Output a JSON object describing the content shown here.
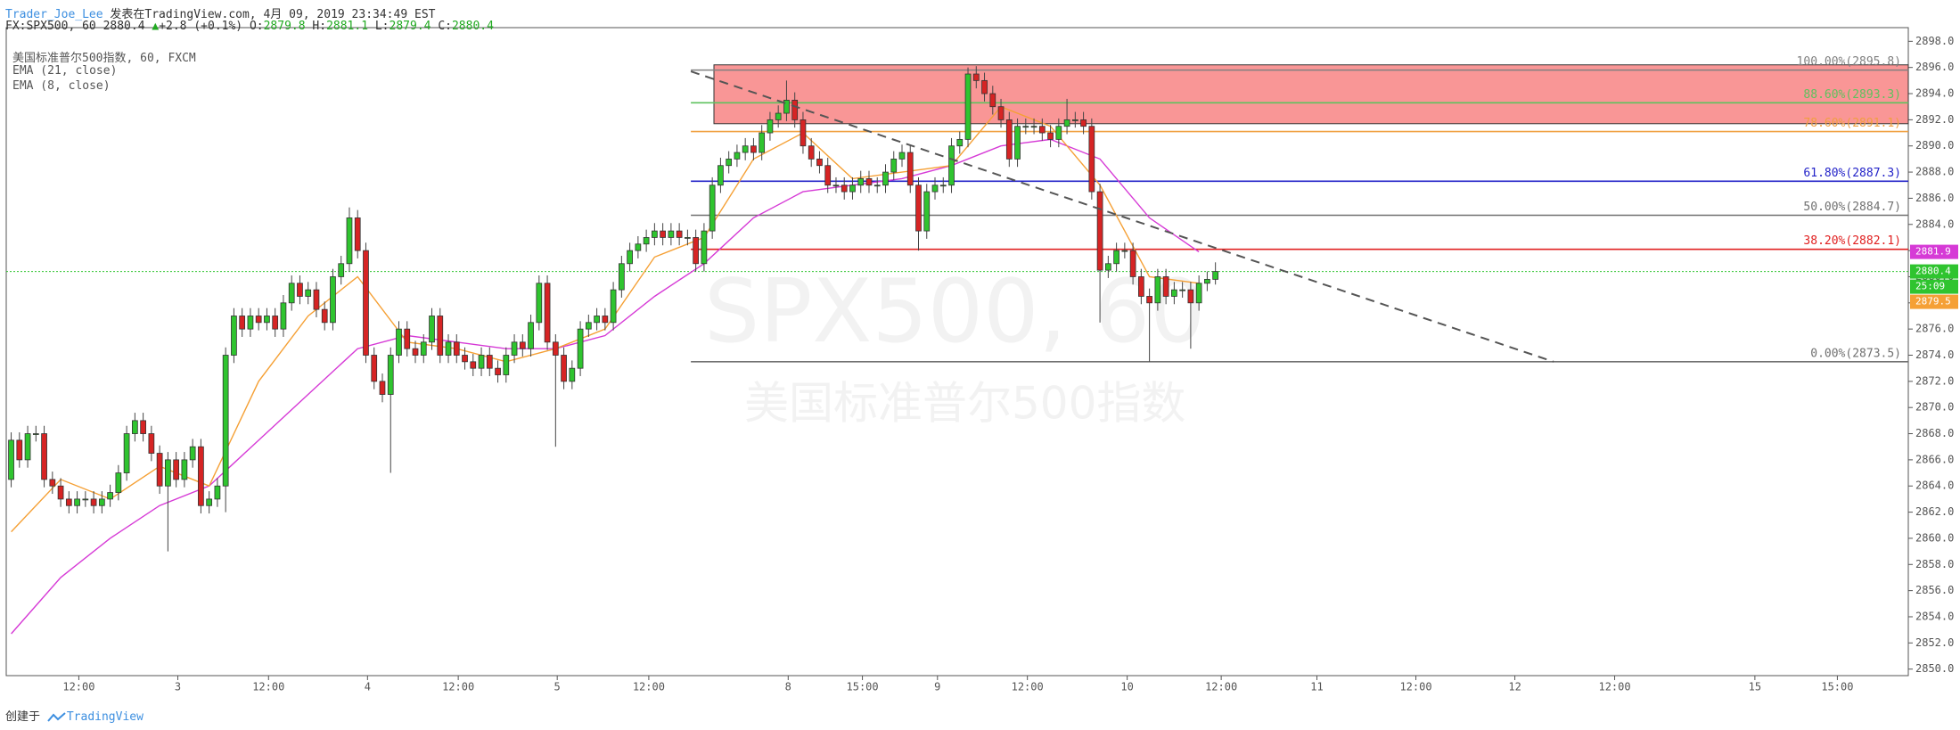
{
  "header": {
    "author": "Trader_Joe_Lee",
    "published": " 发表在TradingView.com, 4月 09, 2019 23:34:49 EST",
    "symbol": "FX:SPX500, 60",
    "change": "+2.8 (+0.1%)",
    "ohlc_prefixes": [
      "O:",
      "H:",
      "L:",
      "C:"
    ]
  },
  "footer": {
    "created": "创建于",
    "brand": "TradingView"
  },
  "chart_data": {
    "type": "candlestick",
    "title": "美国标准普尔500指数, 60, FXCM",
    "watermark": [
      "SPX500, 60",
      "美国标准普尔500指数"
    ],
    "up_color": "#2fc42f",
    "down_color": "#d62424",
    "xlim": [
      -0.6,
      230
    ],
    "ylim": [
      2849.5,
      2898.5
    ],
    "xticks": [
      {
        "value": 8.2,
        "label": "12:00"
      },
      {
        "value": 20.2,
        "label": "3"
      },
      {
        "value": 31.2,
        "label": "12:00"
      },
      {
        "value": 43.2,
        "label": "4"
      },
      {
        "value": 54.2,
        "label": "12:00"
      },
      {
        "value": 66.2,
        "label": "5"
      },
      {
        "value": 77.3,
        "label": "12:00"
      },
      {
        "value": 94.2,
        "label": "8"
      },
      {
        "value": 103.2,
        "label": "15:00"
      },
      {
        "value": 112.3,
        "label": "9"
      },
      {
        "value": 123.2,
        "label": "12:00"
      },
      {
        "value": 135.3,
        "label": "10"
      },
      {
        "value": 146.7,
        "label": "12:00"
      },
      {
        "value": 158.3,
        "label": "11"
      },
      {
        "value": 170.3,
        "label": "12:00"
      },
      {
        "value": 182.3,
        "label": "12"
      },
      {
        "value": 194.4,
        "label": "12:00"
      },
      {
        "value": 211.4,
        "label": "15"
      },
      {
        "value": 221.4,
        "label": "15:00"
      }
    ],
    "yticks": [
      {
        "value": 2850,
        "label": "2850.0"
      },
      {
        "value": 2852,
        "label": "2852.0"
      },
      {
        "value": 2854,
        "label": "2854.0"
      },
      {
        "value": 2856,
        "label": "2856.0"
      },
      {
        "value": 2858,
        "label": "2858.0"
      },
      {
        "value": 2860,
        "label": "2860.0"
      },
      {
        "value": 2862,
        "label": "2862.0"
      },
      {
        "value": 2864,
        "label": "2864.0"
      },
      {
        "value": 2866,
        "label": "2866.0"
      },
      {
        "value": 2868,
        "label": "2868.0"
      },
      {
        "value": 2870,
        "label": "2870.0"
      },
      {
        "value": 2872,
        "label": "2872.0"
      },
      {
        "value": 2874,
        "label": "2874.0"
      },
      {
        "value": 2876,
        "label": "2876.0"
      },
      {
        "value": 2878,
        "label": "2878.0"
      },
      {
        "value": 2880,
        "label": "2880.0"
      },
      {
        "value": 2882,
        "label": "2882.0"
      },
      {
        "value": 2884,
        "label": "2884.0"
      },
      {
        "value": 2886,
        "label": "2886.0"
      },
      {
        "value": 2888,
        "label": "2888.0"
      },
      {
        "value": 2890,
        "label": "2890.0"
      },
      {
        "value": 2892,
        "label": "2892.0"
      },
      {
        "value": 2894,
        "label": "2894.0"
      },
      {
        "value": 2896,
        "label": "2896.0"
      },
      {
        "value": 2898,
        "label": "2898.0"
      }
    ],
    "open": [
      2864.5,
      2867.5,
      2866,
      2868,
      2868,
      2864.5,
      2864,
      2863,
      2862.5,
      2863,
      2863,
      2862.5,
      2863,
      2863.5,
      2865,
      2868,
      2869,
      2868,
      2866.5,
      2864,
      2866,
      2864.5,
      2866,
      2867,
      2862.5,
      2863,
      2864,
      2874,
      2877,
      2876,
      2877,
      2876.5,
      2877,
      2876,
      2878,
      2879.5,
      2878.5,
      2879,
      2877.5,
      2876.5,
      2880,
      2881,
      2884.5,
      2882,
      2874,
      2872,
      2871,
      2874,
      2876,
      2874.5,
      2874,
      2875,
      2877,
      2874,
      2875,
      2874,
      2873.5,
      2873,
      2874,
      2873,
      2872.5,
      2874,
      2875,
      2874.5,
      2876.5,
      2879.5,
      2875,
      2874,
      2872,
      2873,
      2876,
      2876.5,
      2877,
      2876.5,
      2879,
      2881,
      2882,
      2882.5,
      2883,
      2883.5,
      2883,
      2883.5,
      2883,
      2883,
      2881,
      2883.5,
      2887,
      2888.5,
      2889,
      2889.5,
      2890,
      2889.5,
      2891,
      2892,
      2892.5,
      2893.5,
      2892,
      2890,
      2889,
      2888.5,
      2887,
      2887,
      2886.5,
      2887,
      2887.5,
      2887,
      2887,
      2888,
      2889,
      2889.5,
      2887,
      2883.5,
      2886.5,
      2887,
      2887,
      2890,
      2890.5,
      2895.5,
      2895,
      2894,
      2893,
      2892,
      2889,
      2891.5,
      2891.5,
      2891.5,
      2891,
      2890.5,
      2891.5,
      2892,
      2892,
      2891.5,
      2886.5,
      2880.5,
      2881,
      2882,
      2882,
      2880,
      2878.5,
      2878,
      2880,
      2878.5,
      2879,
      2879,
      2878,
      2879.5,
      2879.8
    ],
    "high": [
      2868.1,
      2868.1,
      2868.6,
      2868.6,
      2868.6,
      2865.1,
      2864.6,
      2863.6,
      2863.6,
      2863.6,
      2863.6,
      2863.6,
      2864.1,
      2865.6,
      2868.6,
      2869.6,
      2869.6,
      2868.6,
      2867.1,
      2866.6,
      2866.6,
      2866.6,
      2867.6,
      2867.6,
      2863.6,
      2864.6,
      2874.6,
      2877.6,
      2877.6,
      2877.6,
      2877.6,
      2877.6,
      2877.6,
      2878.6,
      2880.1,
      2880.1,
      2879.6,
      2879.6,
      2878.1,
      2880.6,
      2881.6,
      2885.3,
      2885.1,
      2882.6,
      2874.6,
      2872.6,
      2874.6,
      2876.6,
      2876.6,
      2875.1,
      2875.6,
      2877.6,
      2877.6,
      2875.6,
      2875.6,
      2874.6,
      2874.1,
      2874.6,
      2874.6,
      2873.6,
      2874.6,
      2875.6,
      2875.6,
      2877.1,
      2880.1,
      2880.1,
      2875.6,
      2874.6,
      2873.6,
      2876.6,
      2877.1,
      2877.6,
      2877.6,
      2879.6,
      2881.6,
      2882.6,
      2883.1,
      2883.6,
      2884.1,
      2884.1,
      2884.1,
      2884.1,
      2883.6,
      2883.6,
      2884.1,
      2887.6,
      2889.1,
      2889.6,
      2890.1,
      2890.6,
      2890.6,
      2891.6,
      2892.6,
      2893.1,
      2895,
      2894.1,
      2892.6,
      2890.6,
      2889.6,
      2889.1,
      2887.6,
      2887.6,
      2887.6,
      2888.1,
      2888.1,
      2887.6,
      2888.6,
      2889.6,
      2890.1,
      2890.1,
      2887.6,
      2887.1,
      2887.6,
      2887.6,
      2890.6,
      2891.1,
      2896,
      2896.1,
      2895.6,
      2894.6,
      2893.6,
      2892.6,
      2892.1,
      2892.1,
      2892.1,
      2892.1,
      2891.6,
      2892.1,
      2893.6,
      2892.6,
      2892.6,
      2892.1,
      2887.1,
      2881.6,
      2882.6,
      2882.6,
      2882.6,
      2880.6,
      2879.1,
      2880.6,
      2880.6,
      2879.6,
      2879.6,
      2879.6,
      2880.1,
      2880.4,
      2881.1
    ],
    "low": [
      2863.9,
      2865.4,
      2865.4,
      2867.4,
      2863.9,
      2863.4,
      2862.4,
      2861.9,
      2861.9,
      2862.4,
      2861.9,
      2861.9,
      2862.4,
      2862.9,
      2864.4,
      2867.4,
      2867.4,
      2865.9,
      2863.4,
      2859,
      2863.9,
      2863.9,
      2865.4,
      2861.9,
      2861.9,
      2862.4,
      2862,
      2873.4,
      2875.4,
      2875.4,
      2875.9,
      2875.9,
      2875.4,
      2875.4,
      2877.4,
      2877.9,
      2877.9,
      2876.9,
      2875.9,
      2875.9,
      2879.4,
      2880.4,
      2881.4,
      2873.4,
      2871.4,
      2870.4,
      2865,
      2873.4,
      2873.9,
      2873.4,
      2873.4,
      2874.4,
      2873.4,
      2873.4,
      2873.4,
      2872.9,
      2872.4,
      2872.4,
      2872.4,
      2871.9,
      2871.9,
      2873.4,
      2873.9,
      2873.9,
      2875.9,
      2874.4,
      2867,
      2871.4,
      2871.4,
      2872.4,
      2875.4,
      2875.9,
      2875.9,
      2875.9,
      2878.4,
      2880.4,
      2881.4,
      2881.9,
      2882.4,
      2882.4,
      2882.4,
      2882.4,
      2882.4,
      2880.4,
      2880.4,
      2882.9,
      2886.4,
      2887.9,
      2888.4,
      2888.9,
      2888.9,
      2888.9,
      2890.4,
      2891.4,
      2891.9,
      2891.4,
      2889.4,
      2888.4,
      2887.9,
      2886.4,
      2886.4,
      2885.9,
      2885.9,
      2886.4,
      2886.4,
      2886.4,
      2886.4,
      2887.4,
      2888.4,
      2886.4,
      2882,
      2882.9,
      2885.9,
      2886.4,
      2886.4,
      2889.4,
      2889.9,
      2894.4,
      2893.4,
      2892.4,
      2891.4,
      2888.4,
      2888.4,
      2890.9,
      2890.9,
      2890.4,
      2889.9,
      2889.9,
      2890.9,
      2891.4,
      2890.9,
      2885.9,
      2876.5,
      2879.9,
      2880.4,
      2881.4,
      2879.4,
      2877.9,
      2873.5,
      2877.4,
      2877.9,
      2877.9,
      2878.4,
      2874.5,
      2877.4,
      2878.9,
      2879.4
    ],
    "close": [
      2867.5,
      2866,
      2868,
      2868,
      2864.5,
      2864,
      2863,
      2862.5,
      2863,
      2863,
      2862.5,
      2863,
      2863.5,
      2865,
      2868,
      2869,
      2868,
      2866.5,
      2864,
      2866,
      2864.5,
      2866,
      2867,
      2862.5,
      2863,
      2864,
      2874,
      2877,
      2876,
      2877,
      2876.5,
      2877,
      2876,
      2878,
      2879.5,
      2878.5,
      2879,
      2877.5,
      2876.5,
      2880,
      2881,
      2884.5,
      2882,
      2874,
      2872,
      2871,
      2874,
      2876,
      2874.5,
      2874,
      2875,
      2877,
      2874,
      2875,
      2874,
      2873.5,
      2873,
      2874,
      2873,
      2872.5,
      2874,
      2875,
      2874.5,
      2876.5,
      2879.5,
      2875,
      2874,
      2872,
      2873,
      2876,
      2876.5,
      2877,
      2876.5,
      2879,
      2881,
      2882,
      2882.5,
      2883,
      2883.5,
      2883,
      2883.5,
      2883,
      2883,
      2881,
      2883.5,
      2887,
      2888.5,
      2889,
      2889.5,
      2890,
      2889.5,
      2891,
      2892,
      2892.5,
      2893.5,
      2892,
      2890,
      2889,
      2888.5,
      2887,
      2887,
      2886.5,
      2887,
      2887.5,
      2887,
      2887,
      2888,
      2889,
      2889.5,
      2887,
      2883.5,
      2886.5,
      2887,
      2887,
      2890,
      2890.5,
      2895.5,
      2895,
      2894,
      2893,
      2892,
      2889,
      2891.5,
      2891.5,
      2891.5,
      2891,
      2890.5,
      2891.5,
      2892,
      2892,
      2891.5,
      2886.5,
      2880.5,
      2881,
      2882,
      2882,
      2880,
      2878.5,
      2878,
      2880,
      2878.5,
      2879,
      2879,
      2878,
      2879.5,
      2879.8,
      2880.4
    ],
    "countdown": "25:09",
    "series": [
      {
        "name": "EMA (21, close)",
        "color": "#d63ad6",
        "last": 2881.9,
        "x": [
          0,
          6,
          12,
          18,
          24,
          30,
          36,
          42,
          48,
          54,
          60,
          66,
          72,
          78,
          84,
          90,
          96,
          102,
          108,
          114,
          120,
          126,
          132,
          138,
          144
        ],
        "values": [
          2852.7,
          2857,
          2860,
          2862.5,
          2864,
          2867.5,
          2871,
          2874.5,
          2875.5,
          2875,
          2874.5,
          2874.5,
          2875.5,
          2878.5,
          2881,
          2884.5,
          2886.5,
          2887,
          2887.5,
          2888.5,
          2890,
          2890.5,
          2889,
          2884.5,
          2881.9
        ]
      },
      {
        "name": "EMA (8, close)",
        "color": "#f5a035",
        "last": 2879.5,
        "x": [
          0,
          6,
          12,
          18,
          24,
          30,
          36,
          42,
          48,
          54,
          60,
          66,
          72,
          78,
          84,
          90,
          96,
          102,
          108,
          114,
          120,
          126,
          132,
          138,
          144
        ],
        "values": [
          2860.5,
          2864.5,
          2863,
          2865.5,
          2864,
          2872,
          2877,
          2880,
          2875,
          2874.5,
          2873.5,
          2874.5,
          2876,
          2881.5,
          2883,
          2889,
          2891,
          2887.5,
          2888,
          2888.5,
          2893,
          2891.5,
          2887,
          2880,
          2879.5
        ]
      }
    ],
    "zone": {
      "x": 85.2,
      "y": [
        2891.7,
        2896.2
      ],
      "color": "#f77c7c"
    },
    "fib_start": 82.4,
    "fib_levels": [
      {
        "label": "100.00%(2895.8)",
        "value": 2895.8,
        "color": "#808080"
      },
      {
        "label": "88.60%(2893.3)",
        "value": 2893.3,
        "color": "#5ec25e"
      },
      {
        "label": "78.60%(2891.1)",
        "value": 2891.1,
        "color": "#f0a040"
      },
      {
        "label": "61.80%(2887.3)",
        "value": 2887.3,
        "color": "#2323c8"
      },
      {
        "label": "50.00%(2884.7)",
        "value": 2884.7,
        "color": "#707070"
      },
      {
        "label": "38.20%(2882.1)",
        "value": 2882.1,
        "color": "#e02020"
      },
      {
        "label": "0.00%(2873.5)",
        "value": 2873.5,
        "color": "#707070"
      }
    ],
    "trendline": {
      "x": [
        82.4,
        187
      ],
      "y": [
        2895.7,
        2873.5
      ]
    }
  }
}
